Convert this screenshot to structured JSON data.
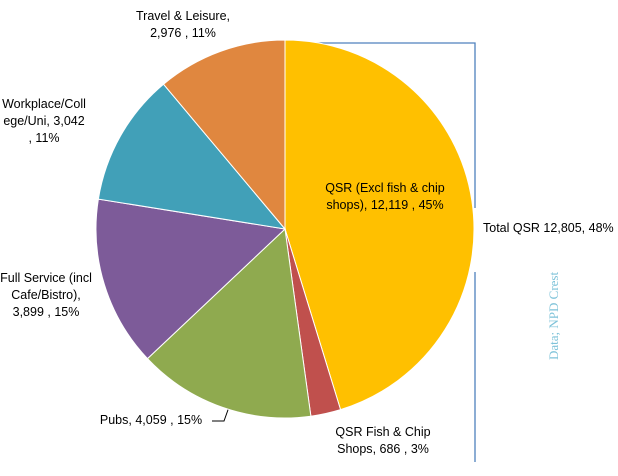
{
  "chart_data": {
    "type": "pie",
    "categories": [
      "QSR (Excl fish & chip shops)",
      "QSR  Fish & Chip Shops",
      "Pubs",
      "Full Service (incl Cafe/Bistro)",
      "Workplace/College/Uni",
      "Travel & Leisure"
    ],
    "values": [
      12119,
      686,
      4059,
      3899,
      3042,
      2976
    ],
    "value_labels": [
      "12,119",
      "686",
      "4,059",
      "3,899",
      "3,042",
      "2,976"
    ],
    "percentages": [
      45,
      3,
      15,
      15,
      11,
      11
    ],
    "percentage_labels": [
      "45%",
      "3%",
      "15%",
      "15%",
      "11%",
      "11%"
    ],
    "colors": [
      "#ffc000",
      "#c0504d",
      "#8faa4f",
      "#7d5b99",
      "#41a0b8",
      "#e0873f"
    ],
    "name_separator": ",",
    "value_separator": " , ",
    "annotations": [
      "Total QSR 12,805, 48%"
    ],
    "source": "Data; NPD Crest"
  }
}
